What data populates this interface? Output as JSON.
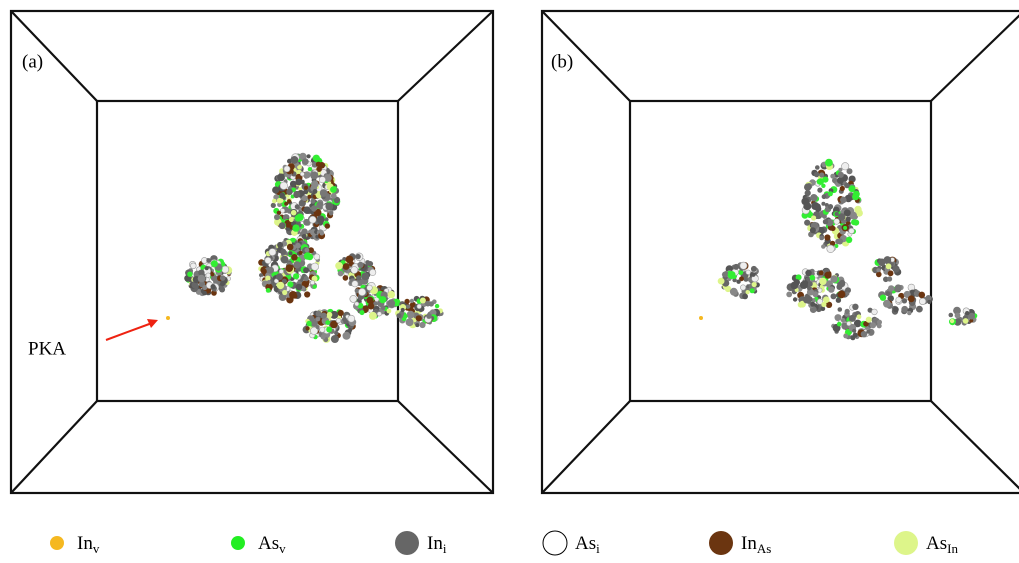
{
  "panels": [
    {
      "label": "(a)"
    },
    {
      "label": "(b)"
    }
  ],
  "annotation": "PKA",
  "legend": [
    {
      "label": "In",
      "sub": "v",
      "color": "#f5b820"
    },
    {
      "label": "As",
      "sub": "v",
      "color": "#22ee22"
    },
    {
      "label": "In",
      "sub": "i",
      "color": "#666666"
    },
    {
      "label": "As",
      "sub": "i",
      "color": "#ffffff"
    },
    {
      "label": "In",
      "sub": "As",
      "color": "#6b3510"
    },
    {
      "label": "As",
      "sub": "In",
      "color": "#ddf58a"
    }
  ]
}
